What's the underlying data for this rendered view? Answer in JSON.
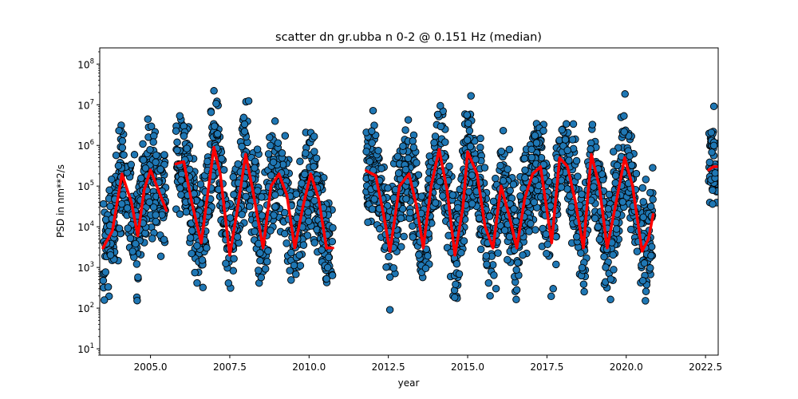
{
  "chart_data": {
    "type": "scatter",
    "title": "scatter dn gr.ubba n 0-2 @ 0.151 Hz (median)",
    "xlabel": "year",
    "ylabel": "PSD in nm**2/s",
    "xlim": [
      2003.4,
      2022.9
    ],
    "ylim": [
      7,
      250000000
    ],
    "yscale": "log",
    "grid": false,
    "legend": "none",
    "x_ticks": [
      2005.0,
      2007.5,
      2010.0,
      2012.5,
      2015.0,
      2017.5,
      2020.0,
      2022.5
    ],
    "x_tick_labels": [
      "2005.0",
      "2007.5",
      "2010.0",
      "2012.5",
      "2015.0",
      "2017.5",
      "2020.0",
      "2022.5"
    ],
    "y_ticks": [
      10,
      100,
      1000,
      10000,
      100000,
      1000000,
      10000000,
      100000000
    ],
    "y_tick_labels": [
      {
        "base": "10",
        "exp": "1"
      },
      {
        "base": "10",
        "exp": "2"
      },
      {
        "base": "10",
        "exp": "3"
      },
      {
        "base": "10",
        "exp": "4"
      },
      {
        "base": "10",
        "exp": "5"
      },
      {
        "base": "10",
        "exp": "6"
      },
      {
        "base": "10",
        "exp": "7"
      },
      {
        "base": "10",
        "exp": "8"
      }
    ],
    "colors": {
      "scatter_fill": "#1f77b4",
      "scatter_edge": "#000000",
      "median_line": "#ff0000"
    },
    "data_segments": [
      {
        "start": 2003.5,
        "end": 2005.5
      },
      {
        "start": 2005.8,
        "end": 2010.75
      },
      {
        "start": 2011.8,
        "end": 2020.85
      },
      {
        "start": 2022.6,
        "end": 2022.9
      }
    ],
    "series": [
      {
        "kind": "line",
        "x": [
          2003.5,
          2003.8,
          2004.1,
          2004.4,
          2004.6,
          2004.8,
          2005.0,
          2005.2,
          2005.5,
          null,
          2005.8,
          2006.05,
          2006.3,
          2006.6,
          2006.8,
          2007.0,
          2007.2,
          2007.5,
          2007.75,
          2008.0,
          2008.2,
          2008.55,
          2008.8,
          2009.05,
          2009.3,
          2009.55,
          2009.8,
          2010.05,
          2010.3,
          2010.55,
          2010.75,
          null,
          2011.8,
          2012.1,
          2012.35,
          2012.55,
          2012.85,
          2013.15,
          2013.4,
          2013.6,
          2013.85,
          2014.1,
          2014.35,
          2014.6,
          2014.85,
          2015.0,
          2015.3,
          2015.55,
          2015.8,
          2016.05,
          2016.3,
          2016.55,
          2016.8,
          2017.05,
          2017.3,
          2017.65,
          2017.9,
          2018.15,
          2018.4,
          2018.65,
          2018.9,
          2019.15,
          2019.4,
          2019.65,
          2019.95,
          2020.2,
          2020.5,
          2020.7,
          2020.85,
          null,
          2022.6,
          2022.75,
          2022.9
        ],
        "y": [
          3000,
          8000,
          200000,
          40000,
          6000,
          80000,
          250000,
          100000,
          25000,
          null,
          350000,
          400000,
          40000,
          4000,
          60000,
          900000,
          200000,
          2000,
          30000,
          600000,
          100000,
          3000,
          100000,
          200000,
          60000,
          3000,
          30000,
          200000,
          50000,
          3000,
          3000,
          null,
          240000,
          180000,
          20000,
          2500,
          100000,
          200000,
          30000,
          3000,
          100000,
          800000,
          80000,
          2000,
          30000,
          700000,
          200000,
          10000,
          3000,
          100000,
          20000,
          3000,
          50000,
          200000,
          300000,
          4000,
          500000,
          300000,
          40000,
          3000,
          600000,
          100000,
          3000,
          30000,
          500000,
          100000,
          2500,
          5000,
          20000,
          null,
          250000,
          300000,
          300000
        ]
      }
    ]
  }
}
